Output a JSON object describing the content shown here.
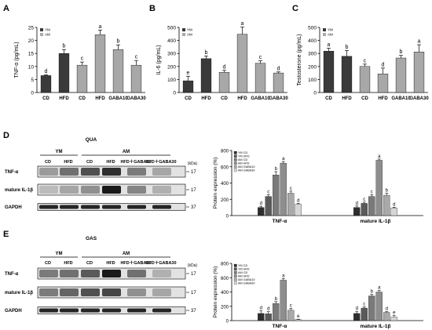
{
  "panel_letters": {
    "A": "A",
    "B": "B",
    "C": "C",
    "D": "D",
    "E": "E"
  },
  "colors": {
    "dark": "#3a3a3a",
    "gray": "#a8a8a8",
    "s1": "#2e2e2e",
    "s2": "#5a5a5a",
    "s3": "#7a7a7a",
    "s4": "#8e8e8e",
    "s5": "#a9a9a9",
    "s6": "#d6d6d6"
  },
  "chart_data": [
    {
      "type": "bar",
      "id": "A",
      "categories": [
        "CD",
        "HFD",
        "CD",
        "HFD",
        "GABA10",
        "GABA30"
      ],
      "values": [
        6.5,
        15.0,
        10.5,
        22.2,
        16.5,
        10.5
      ],
      "errors": [
        0.3,
        1.5,
        1.2,
        1.8,
        1.8,
        1.8
      ],
      "letters": [
        "d",
        "b",
        "c",
        "a",
        "b",
        "c"
      ],
      "group": [
        "YM",
        "YM",
        "AM",
        "AM",
        "AM",
        "AM"
      ],
      "legend": [
        "YM",
        "AM"
      ],
      "ylabel": "TNF-α (pg/mL)",
      "ylim": [
        0,
        25
      ],
      "yticks": [
        0,
        5,
        10,
        15,
        20,
        25
      ]
    },
    {
      "type": "bar",
      "id": "B",
      "categories": [
        "CD",
        "HFD",
        "CD",
        "HFD",
        "GABA10",
        "GABA30"
      ],
      "values": [
        90,
        260,
        155,
        448,
        225,
        150
      ],
      "errors": [
        35,
        20,
        15,
        55,
        18,
        8
      ],
      "letters": [
        "e",
        "b",
        "d",
        "a",
        "c",
        "d"
      ],
      "group": [
        "YM",
        "YM",
        "AM",
        "AM",
        "AM",
        "AM"
      ],
      "legend": [
        "YM",
        "AM"
      ],
      "ylabel": "IL-6 (pg/mL)",
      "ylim": [
        0,
        500
      ],
      "yticks": [
        0,
        100,
        200,
        300,
        400,
        500
      ]
    },
    {
      "type": "bar",
      "id": "C",
      "categories": [
        "CD",
        "HFD",
        "CD",
        "HFD",
        "GABA10",
        "GABA30"
      ],
      "values": [
        318,
        278,
        200,
        143,
        265,
        312
      ],
      "errors": [
        22,
        45,
        18,
        45,
        20,
        55
      ],
      "letters": [
        "a",
        "b",
        "c",
        "d",
        "b",
        "a"
      ],
      "group": [
        "YM",
        "YM",
        "AM",
        "AM",
        "AM",
        "AM"
      ],
      "legend": [
        "YM",
        "AM"
      ],
      "ylabel": "Testosterone (pg/mL)",
      "ylim": [
        0,
        500
      ],
      "yticks": [
        0,
        100,
        200,
        300,
        400,
        500
      ]
    },
    {
      "type": "bar",
      "id": "D",
      "categories": [
        "TNF-α",
        "mature IL-1β"
      ],
      "series": [
        {
          "name": "YM CD",
          "values": [
            100,
            100
          ],
          "errors": [
            15,
            18
          ],
          "letters": [
            "d",
            "d"
          ]
        },
        {
          "name": "YM HFD",
          "values": [
            235,
            150
          ],
          "errors": [
            20,
            15
          ],
          "letters": [
            "c",
            "c"
          ]
        },
        {
          "name": "AM CD",
          "values": [
            500,
            235
          ],
          "errors": [
            40,
            20
          ],
          "letters": [
            "b",
            "c"
          ]
        },
        {
          "name": "AM HFD",
          "values": [
            645,
            680
          ],
          "errors": [
            20,
            15
          ],
          "letters": [
            "a",
            "a"
          ]
        },
        {
          "name": "AM GABA10",
          "values": [
            275,
            250
          ],
          "errors": [
            25,
            25
          ],
          "letters": [
            "c",
            "b"
          ]
        },
        {
          "name": "AM GABA30",
          "values": [
            140,
            95
          ],
          "errors": [
            10,
            8
          ],
          "letters": [
            "d",
            "d"
          ]
        }
      ],
      "ylabel": "Protein expression (%)",
      "ylim": [
        0,
        800
      ],
      "yticks": [
        0,
        200,
        400,
        600,
        800
      ]
    },
    {
      "type": "bar",
      "id": "E",
      "categories": [
        "TNF-α",
        "mature IL-1β"
      ],
      "series": [
        {
          "name": "YM CD",
          "values": [
            100,
            100
          ],
          "errors": [
            35,
            30
          ],
          "letters": [
            "d",
            "d"
          ]
        },
        {
          "name": "YM HFD",
          "values": [
            95,
            175
          ],
          "errors": [
            30,
            15
          ],
          "letters": [
            "d",
            "c"
          ]
        },
        {
          "name": "AM CD",
          "values": [
            240,
            345
          ],
          "errors": [
            25,
            20
          ],
          "letters": [
            "b",
            "b"
          ]
        },
        {
          "name": "AM HFD",
          "values": [
            565,
            400
          ],
          "errors": [
            20,
            20
          ],
          "letters": [
            "a",
            "a"
          ]
        },
        {
          "name": "AM GABA10",
          "values": [
            145,
            115
          ],
          "errors": [
            25,
            10
          ],
          "letters": [
            "c",
            "d"
          ]
        },
        {
          "name": "AM GABA30",
          "values": [
            15,
            50
          ],
          "errors": [
            5,
            20
          ],
          "letters": [
            "e",
            "e"
          ]
        }
      ],
      "ylabel": "Protein expression (%)",
      "ylim": [
        0,
        800
      ],
      "yticks": [
        0,
        200,
        400,
        600,
        800
      ]
    }
  ],
  "blots": [
    {
      "id": "D",
      "title": "QUA",
      "groups": [
        {
          "label": "YM",
          "span": 2
        },
        {
          "label": "AM",
          "span": 4
        }
      ],
      "lanes": [
        "CD",
        "HFD",
        "CD",
        "HFD",
        "HFD＋GABA10",
        "HFD＋GABA30"
      ],
      "kda_label": "(kDa)",
      "rows": [
        {
          "label": "TNF-α",
          "kda": "17",
          "intensity": [
            0.35,
            0.55,
            0.7,
            0.85,
            0.5,
            0.3
          ]
        },
        {
          "label": "mature IL-1β",
          "kda": "17",
          "intensity": [
            0.2,
            0.3,
            0.4,
            0.95,
            0.45,
            0.25
          ]
        },
        {
          "label": "GAPDH",
          "kda": "37",
          "intensity": [
            0.9,
            0.9,
            0.9,
            0.9,
            0.9,
            0.9
          ]
        }
      ]
    },
    {
      "id": "E",
      "title": "GAS",
      "groups": [
        {
          "label": "YM",
          "span": 2
        },
        {
          "label": "AM",
          "span": 4
        }
      ],
      "lanes": [
        "CD",
        "HFD",
        "CD",
        "HFD",
        "HFD＋GABA10",
        "HFD＋GABA30"
      ],
      "kda_label": "(kDa)",
      "rows": [
        {
          "label": "TNF-α",
          "kda": "17",
          "intensity": [
            0.5,
            0.55,
            0.65,
            0.95,
            0.55,
            0.25
          ]
        },
        {
          "label": "mature IL-1β",
          "kda": "17",
          "intensity": [
            0.5,
            0.6,
            0.7,
            0.75,
            0.4,
            0.3
          ]
        },
        {
          "label": "GAPDH",
          "kda": "37",
          "intensity": [
            0.9,
            0.9,
            0.9,
            0.9,
            0.9,
            0.9
          ]
        }
      ]
    }
  ]
}
